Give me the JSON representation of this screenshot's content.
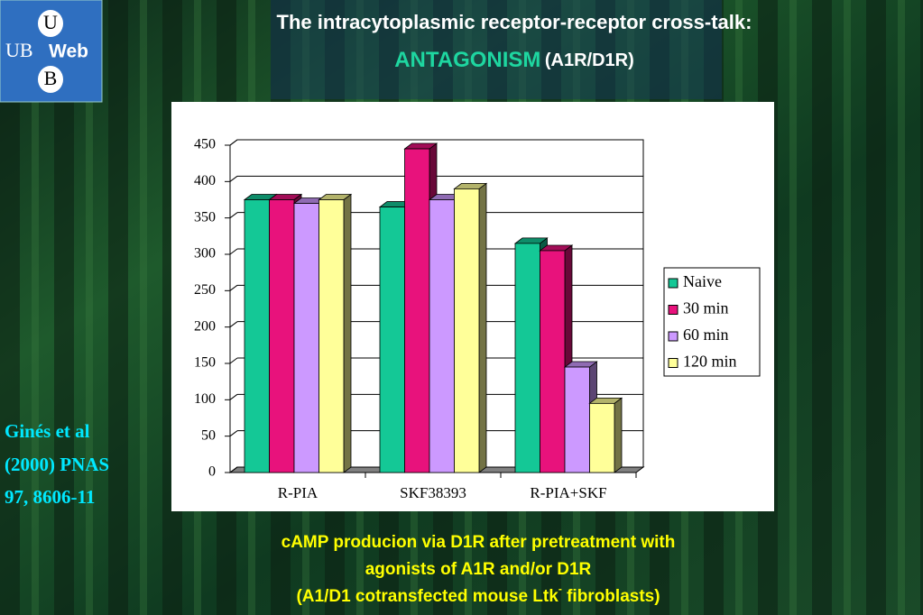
{
  "logo": {
    "top": "U",
    "left": "UB",
    "right": "Web",
    "bottom": "B"
  },
  "header": {
    "title": "The intracytoplasmic receptor-receptor cross-talk:",
    "highlight": "ANTAGONISM",
    "subtitle": "(A1R/D1R)"
  },
  "citation": [
    "Ginés et al",
    "(2000) PNAS",
    "97, 8606-11"
  ],
  "caption": {
    "line1": "cAMP producion via D1R  after pretreatment with",
    "line2": "agonists of A1R and/or D1R",
    "line3_start": "(A1/D1 cotransfected mouse Ltk",
    "superscript": "-",
    "line3_end": " fibroblasts)"
  },
  "chart_data": {
    "type": "bar3d",
    "categories": [
      "R-PIA",
      "SKF38393",
      "R-PIA+SKF"
    ],
    "series": [
      {
        "name": "Naive",
        "color": "#14c896",
        "values": [
          375,
          365,
          315
        ]
      },
      {
        "name": "30 min",
        "color": "#e8127c",
        "values": [
          375,
          445,
          305
        ]
      },
      {
        "name": "60 min",
        "color": "#cc99ff",
        "values": [
          370,
          375,
          145
        ]
      },
      {
        "name": "120 min",
        "color": "#ffff99",
        "values": [
          375,
          390,
          95
        ]
      }
    ],
    "ylim": [
      0,
      450
    ],
    "yticks": [
      0,
      50,
      100,
      150,
      200,
      250,
      300,
      350,
      400,
      450
    ],
    "grid": true,
    "legend": "right"
  }
}
